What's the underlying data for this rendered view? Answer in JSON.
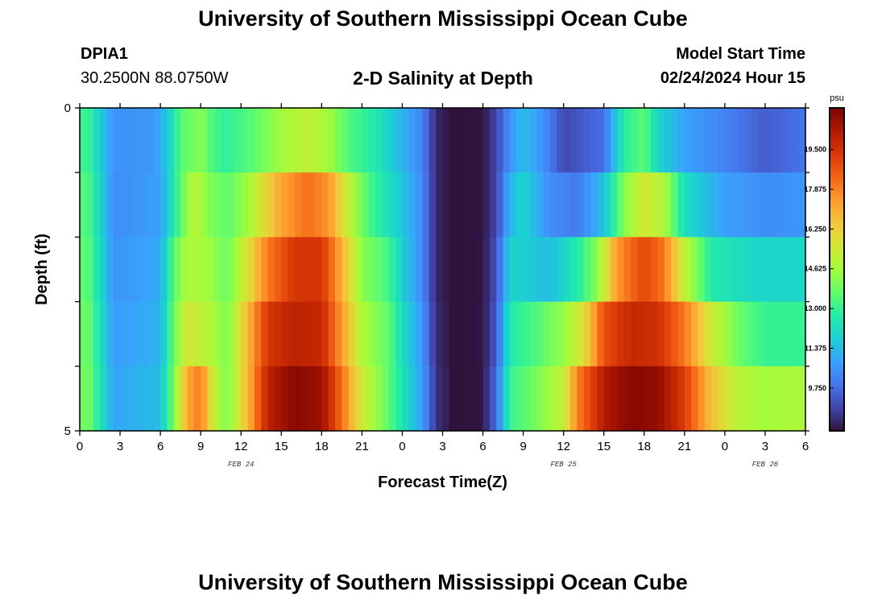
{
  "header": {
    "title": "University of Southern Mississippi Ocean Cube",
    "station_id": "DPIA1",
    "station_coords": "30.2500N  88.0750W",
    "subtitle": "2-D Salinity at Depth",
    "model_start_label": "Model Start Time",
    "model_start_value": "02/24/2024 Hour 15"
  },
  "footer": {
    "title": "University of Southern Mississippi Ocean Cube"
  },
  "chart_data": {
    "type": "heatmap",
    "title": "2-D Salinity at Depth",
    "xlabel": "Forecast Time(Z)",
    "ylabel": "Depth (ft)",
    "x_tick_labels": [
      "0",
      "3",
      "6",
      "9",
      "12",
      "15",
      "18",
      "21",
      "0",
      "3",
      "6",
      "9",
      "12",
      "15",
      "18",
      "21",
      "0",
      "3",
      "6"
    ],
    "x_tick_hours": [
      0,
      3,
      6,
      9,
      12,
      15,
      18,
      21,
      24,
      27,
      30,
      33,
      36,
      39,
      42,
      45,
      48,
      51,
      54
    ],
    "date_labels": [
      {
        "text": "FEB 24",
        "hour": 12
      },
      {
        "text": "FEB 25",
        "hour": 36
      },
      {
        "text": "FEB 26",
        "hour": 51
      }
    ],
    "xlim": [
      0,
      54
    ],
    "y_tick_labels": [
      "0",
      "5"
    ],
    "ylim": [
      0,
      5
    ],
    "depth_bands": 5,
    "colorbar": {
      "unit": "psu",
      "range": [
        8.0,
        21.2
      ],
      "tick_values": [
        9.75,
        11.375,
        13.0,
        14.625,
        16.25,
        17.875,
        19.5
      ],
      "tick_labels": [
        "9.750",
        "11.375",
        "13.000",
        "14.625",
        "16.250",
        "17.875",
        "19.500"
      ],
      "colors": [
        "#30123b",
        "#4145ab",
        "#4675ed",
        "#39a2fc",
        "#1bcfd4",
        "#24eca6",
        "#61fc6c",
        "#a4fc3b",
        "#d1e834",
        "#f3c63a",
        "#fe9b2d",
        "#f36315",
        "#d93806",
        "#b11901",
        "#7a0402"
      ]
    },
    "series": [
      {
        "depth_ft": 0.5,
        "keys": [
          [
            0,
            12.8
          ],
          [
            0.5,
            13.3
          ],
          [
            1.5,
            11.8
          ],
          [
            2.5,
            10.5
          ],
          [
            5.5,
            10.6
          ],
          [
            6.5,
            11.6
          ],
          [
            7.5,
            13.5
          ],
          [
            9,
            14.2
          ],
          [
            10,
            13.2
          ],
          [
            11,
            12.9
          ],
          [
            13,
            13.6
          ],
          [
            15,
            14.6
          ],
          [
            17,
            15.2
          ],
          [
            18.5,
            14.6
          ],
          [
            20,
            13.4
          ],
          [
            22,
            12.6
          ],
          [
            24,
            11.2
          ],
          [
            25.5,
            10.2
          ],
          [
            26.5,
            8.4
          ],
          [
            28,
            7.9
          ],
          [
            30,
            8.1
          ],
          [
            31,
            9.0
          ],
          [
            32,
            10.5
          ],
          [
            33,
            11.4
          ],
          [
            34.5,
            10.5
          ],
          [
            36,
            9.0
          ],
          [
            39,
            9.8
          ],
          [
            40.5,
            12.8
          ],
          [
            42,
            13.6
          ],
          [
            43,
            12.0
          ],
          [
            45,
            10.8
          ],
          [
            48,
            10.2
          ],
          [
            51,
            9.4
          ],
          [
            54,
            9.9
          ]
        ]
      },
      {
        "depth_ft": 1.5,
        "keys": [
          [
            0,
            13.2
          ],
          [
            0.5,
            13.6
          ],
          [
            1.5,
            12.0
          ],
          [
            2.5,
            10.4
          ],
          [
            6,
            10.8
          ],
          [
            7.5,
            13.5
          ],
          [
            8.5,
            15.2
          ],
          [
            9.5,
            14.2
          ],
          [
            11,
            13.6
          ],
          [
            12.5,
            14.6
          ],
          [
            15,
            17.2
          ],
          [
            17,
            18.2
          ],
          [
            18.5,
            17.5
          ],
          [
            20,
            15.2
          ],
          [
            21.5,
            13.3
          ],
          [
            24,
            11.6
          ],
          [
            25.5,
            10.3
          ],
          [
            26.5,
            8.4
          ],
          [
            28,
            7.9
          ],
          [
            30,
            8.1
          ],
          [
            31,
            9.0
          ],
          [
            32,
            11.2
          ],
          [
            33,
            12.0
          ],
          [
            35,
            10.4
          ],
          [
            37,
            10.0
          ],
          [
            39,
            11.5
          ],
          [
            40.5,
            14.2
          ],
          [
            42,
            15.6
          ],
          [
            43.5,
            14.8
          ],
          [
            45,
            12.2
          ],
          [
            48,
            10.8
          ],
          [
            51,
            10.4
          ],
          [
            54,
            10.6
          ]
        ]
      },
      {
        "depth_ft": 2.5,
        "keys": [
          [
            0,
            13.4
          ],
          [
            0.5,
            13.8
          ],
          [
            1.5,
            12.2
          ],
          [
            2.5,
            10.5
          ],
          [
            6,
            11.0
          ],
          [
            7,
            13.6
          ],
          [
            8,
            14.8
          ],
          [
            9.5,
            14.6
          ],
          [
            11,
            13.8
          ],
          [
            12.5,
            15.8
          ],
          [
            14,
            18.0
          ],
          [
            16,
            19.4
          ],
          [
            18,
            19.4
          ],
          [
            19.5,
            17.0
          ],
          [
            21,
            14.2
          ],
          [
            23,
            13.2
          ],
          [
            24,
            11.8
          ],
          [
            25.5,
            10.3
          ],
          [
            26.5,
            8.4
          ],
          [
            28,
            7.9
          ],
          [
            30,
            8.1
          ],
          [
            31,
            9.2
          ],
          [
            32,
            12.0
          ],
          [
            33,
            11.8
          ],
          [
            35,
            11.4
          ],
          [
            37,
            12.6
          ],
          [
            38.5,
            14.2
          ],
          [
            40,
            17.5
          ],
          [
            42,
            19.0
          ],
          [
            43.5,
            18.0
          ],
          [
            45,
            15.2
          ],
          [
            47,
            12.6
          ],
          [
            50,
            12.0
          ],
          [
            54,
            12.0
          ]
        ]
      },
      {
        "depth_ft": 3.5,
        "keys": [
          [
            0,
            13.6
          ],
          [
            0.5,
            14.0
          ],
          [
            1.5,
            12.4
          ],
          [
            2.5,
            10.7
          ],
          [
            6,
            11.2
          ],
          [
            7,
            13.8
          ],
          [
            8,
            15.6
          ],
          [
            9.5,
            15.0
          ],
          [
            11,
            14.0
          ],
          [
            12.5,
            16.8
          ],
          [
            14,
            19.4
          ],
          [
            16,
            20.0
          ],
          [
            18,
            19.8
          ],
          [
            19.5,
            17.4
          ],
          [
            21,
            14.8
          ],
          [
            23,
            13.6
          ],
          [
            24,
            12.2
          ],
          [
            25.5,
            10.6
          ],
          [
            26.5,
            8.5
          ],
          [
            28,
            7.9
          ],
          [
            30,
            8.1
          ],
          [
            31,
            9.4
          ],
          [
            32,
            12.6
          ],
          [
            34,
            13.4
          ],
          [
            36,
            14.4
          ],
          [
            37.5,
            15.8
          ],
          [
            39,
            18.8
          ],
          [
            41,
            19.8
          ],
          [
            43,
            19.6
          ],
          [
            45,
            18.0
          ],
          [
            47,
            15.4
          ],
          [
            49,
            13.8
          ],
          [
            51,
            13.0
          ],
          [
            54,
            13.0
          ]
        ]
      },
      {
        "depth_ft": 4.5,
        "keys": [
          [
            0,
            13.6
          ],
          [
            0.5,
            14.2
          ],
          [
            1.5,
            12.5
          ],
          [
            2.5,
            10.9
          ],
          [
            6,
            11.4
          ],
          [
            7,
            14.0
          ],
          [
            8,
            17.2
          ],
          [
            9,
            18.0
          ],
          [
            10,
            15.2
          ],
          [
            11,
            14.0
          ],
          [
            12.5,
            16.8
          ],
          [
            14,
            20.0
          ],
          [
            16,
            21.0
          ],
          [
            18,
            20.6
          ],
          [
            19.5,
            18.2
          ],
          [
            21,
            15.4
          ],
          [
            23,
            13.6
          ],
          [
            24,
            12.4
          ],
          [
            25.5,
            10.8
          ],
          [
            26.5,
            8.6
          ],
          [
            28,
            7.9
          ],
          [
            30,
            8.1
          ],
          [
            31,
            9.8
          ],
          [
            32,
            13.0
          ],
          [
            34,
            14.0
          ],
          [
            36,
            15.2
          ],
          [
            37,
            17.8
          ],
          [
            39,
            20.2
          ],
          [
            41,
            21.0
          ],
          [
            43,
            20.8
          ],
          [
            45,
            19.2
          ],
          [
            47,
            16.6
          ],
          [
            49,
            15.0
          ],
          [
            51,
            14.6
          ],
          [
            54,
            14.8
          ]
        ]
      }
    ],
    "grid": false,
    "legend": "colorbar-right"
  }
}
